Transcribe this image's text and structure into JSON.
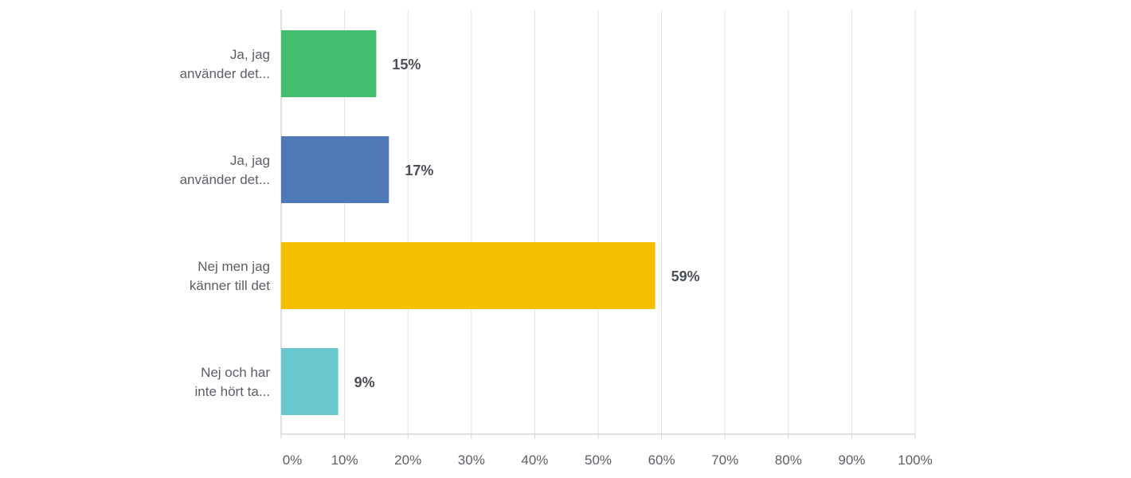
{
  "chart_data": {
    "type": "bar",
    "orientation": "horizontal",
    "categories": [
      [
        "Ja, jag",
        "använder det..."
      ],
      [
        "Ja, jag",
        "använder det..."
      ],
      [
        "Nej men jag",
        "känner till det"
      ],
      [
        "Nej och har",
        "inte hört ta..."
      ]
    ],
    "values": [
      15,
      17,
      59,
      9
    ],
    "data_labels": [
      "15%",
      "17%",
      "59%",
      "9%"
    ],
    "colors": [
      "#42bf6e",
      "#4f79b6",
      "#f6bf00",
      "#69c8cd"
    ],
    "xlim": [
      0,
      100
    ],
    "xticks": [
      0,
      10,
      20,
      30,
      40,
      50,
      60,
      70,
      80,
      90,
      100
    ],
    "xtick_labels": [
      "0%",
      "10%",
      "20%",
      "30%",
      "40%",
      "50%",
      "60%",
      "70%",
      "80%",
      "90%",
      "100%"
    ],
    "grid": true,
    "legend": "none"
  }
}
